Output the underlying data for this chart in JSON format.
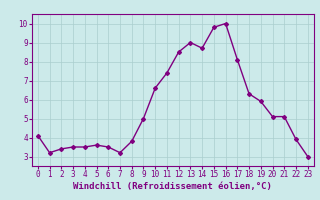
{
  "x": [
    0,
    1,
    2,
    3,
    4,
    5,
    6,
    7,
    8,
    9,
    10,
    11,
    12,
    13,
    14,
    15,
    16,
    17,
    18,
    19,
    20,
    21,
    22,
    23
  ],
  "y": [
    4.1,
    3.2,
    3.4,
    3.5,
    3.5,
    3.6,
    3.5,
    3.2,
    3.8,
    5.0,
    6.6,
    7.4,
    8.5,
    9.0,
    8.7,
    9.8,
    10.0,
    8.1,
    6.3,
    5.9,
    5.1,
    5.1,
    3.9,
    3.0
  ],
  "line_color": "#800080",
  "marker": "D",
  "marker_size": 2,
  "bg_color": "#cceaea",
  "grid_color": "#aacece",
  "xlabel": "Windchill (Refroidissement éolien,°C)",
  "ylim": [
    2.5,
    10.5
  ],
  "yticks": [
    3,
    4,
    5,
    6,
    7,
    8,
    9,
    10
  ],
  "xticks": [
    0,
    1,
    2,
    3,
    4,
    5,
    6,
    7,
    8,
    9,
    10,
    11,
    12,
    13,
    14,
    15,
    16,
    17,
    18,
    19,
    20,
    21,
    22,
    23
  ],
  "font_color": "#800080",
  "tick_fontsize": 5.5,
  "label_fontsize": 6.5,
  "line_width": 1.0
}
